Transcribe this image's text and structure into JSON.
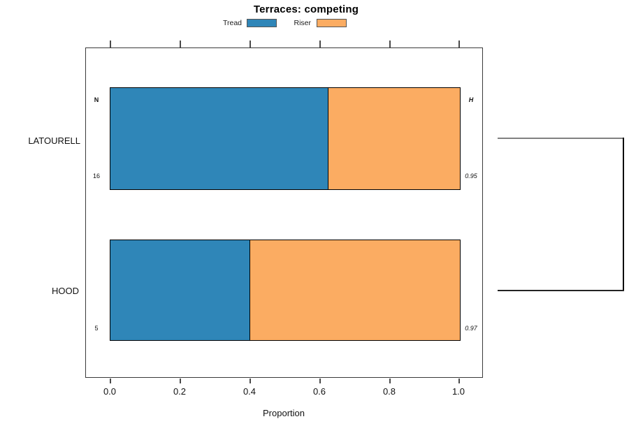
{
  "chart_data": {
    "type": "bar",
    "orientation": "horizontal",
    "stacked": true,
    "title": "Terraces: competing",
    "xlabel": "Proportion",
    "xlim": [
      0,
      1
    ],
    "xtick_labels": [
      "0.0",
      "0.2",
      "0.4",
      "0.6",
      "0.8",
      "1.0"
    ],
    "xtick_values": [
      0.0,
      0.2,
      0.4,
      0.6,
      0.8,
      1.0
    ],
    "categories": [
      "LATOURELL",
      "HOOD"
    ],
    "series": [
      {
        "name": "Tread",
        "color": "#2F86B8",
        "values": [
          0.625,
          0.4
        ]
      },
      {
        "name": "Riser",
        "color": "#FBAC62",
        "values": [
          0.375,
          0.6
        ]
      }
    ],
    "row_annotations": {
      "count_header": "N",
      "count_values": [
        "16",
        "5"
      ],
      "diversity_header": "H",
      "diversity_values": [
        "0.95",
        "0.97"
      ]
    },
    "legend_position": "top-center",
    "grid": false,
    "dendrogram": {
      "description": "two-leaf bracket in right margin joining LATOURELL and HOOD bar centers",
      "leaf_top_color": "#808080",
      "leaf_bottom_color": "#232323",
      "join_color": "#0a0a0a"
    },
    "colors": {
      "bar_border": "#000000",
      "axis": "#4a4a4a",
      "background": "#ffffff"
    }
  }
}
